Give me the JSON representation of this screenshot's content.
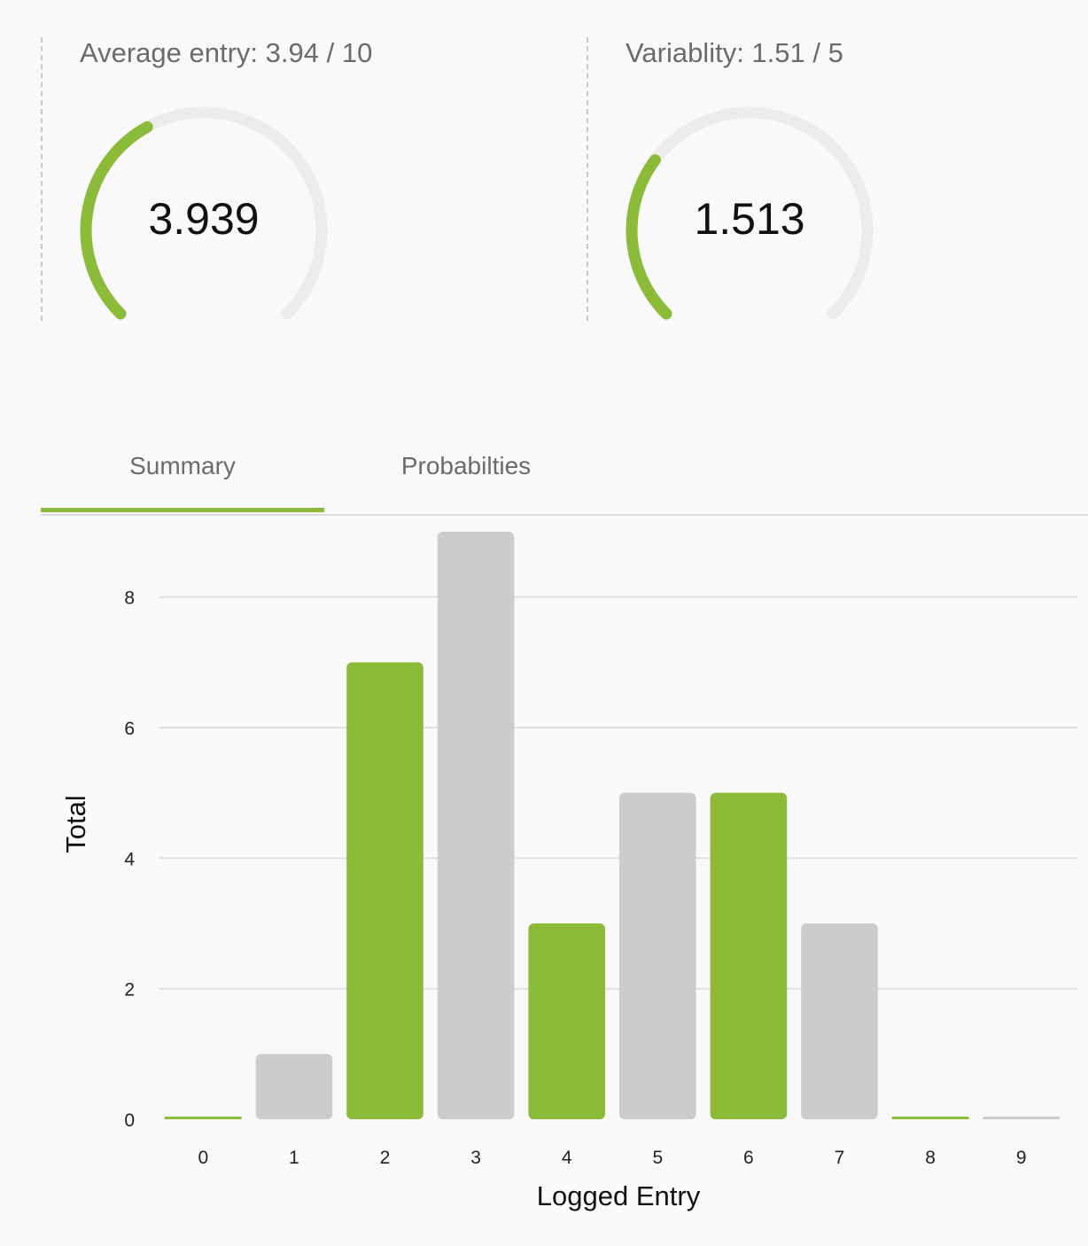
{
  "gauges": [
    {
      "title": "Average entry: 3.94 / 10",
      "value_text": "3.939",
      "value": 3.939,
      "max": 10
    },
    {
      "title": "Variablity: 1.51 / 5",
      "value_text": "1.513",
      "value": 1.513,
      "max": 5
    }
  ],
  "tabs": [
    {
      "label": "Summary",
      "active": true
    },
    {
      "label": "Probabilties",
      "active": false
    }
  ],
  "colors": {
    "accent": "#8cbb3a",
    "bar_alt": "#cccccc",
    "track": "#ececec",
    "grid": "#e0e0e0"
  },
  "chart_data": {
    "type": "bar",
    "categories": [
      "0",
      "1",
      "2",
      "3",
      "4",
      "5",
      "6",
      "7",
      "8",
      "9"
    ],
    "values": [
      0,
      1,
      7,
      9,
      3,
      5,
      5,
      3,
      0,
      0
    ],
    "xlabel": "Logged Entry",
    "ylabel": "Total",
    "ylim": [
      0,
      9
    ],
    "yticks": [
      0,
      2,
      4,
      6,
      8
    ],
    "grid": true,
    "bar_colors": [
      "#8cbb3a",
      "#cccccc",
      "#8cbb3a",
      "#cccccc",
      "#8cbb3a",
      "#cccccc",
      "#8cbb3a",
      "#cccccc",
      "#8cbb3a",
      "#cccccc"
    ]
  }
}
